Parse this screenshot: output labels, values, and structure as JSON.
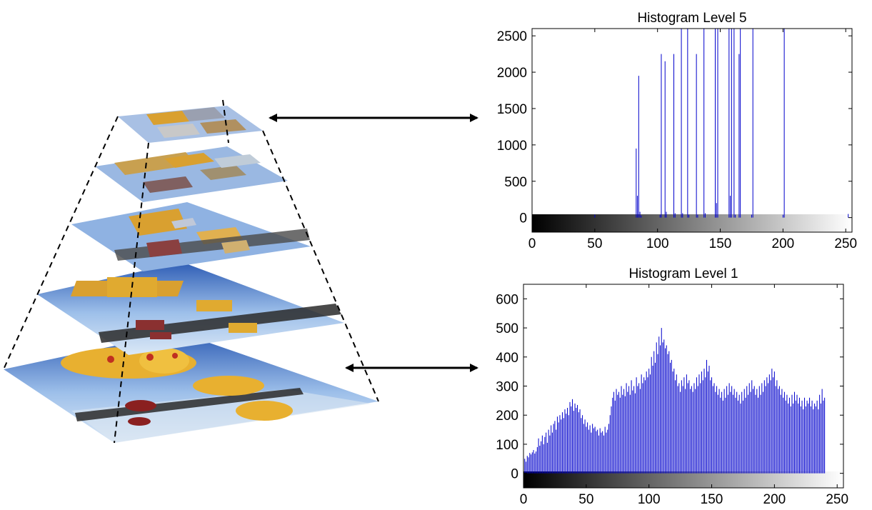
{
  "colors": {
    "histogram_line": "#0000cc",
    "arrow": "#000000",
    "sky": "#4a78c8",
    "balloon": "#e0a020",
    "water": "#2c2c2c"
  },
  "pyramid": {
    "levels": 5,
    "icons": [
      "pyramid-level-5",
      "pyramid-level-4",
      "pyramid-level-3",
      "pyramid-level-2",
      "pyramid-level-1"
    ]
  },
  "chart_data": [
    {
      "type": "bar",
      "title": "Histogram Level 5",
      "xlim": [
        0,
        255
      ],
      "ylim": [
        -200,
        2600
      ],
      "xticks": [
        "0",
        "50",
        "100",
        "150",
        "200",
        "250"
      ],
      "yticks": [
        "0",
        "500",
        "1000",
        "1500",
        "2000",
        "2500"
      ],
      "xtick_values": [
        0,
        50,
        100,
        150,
        200,
        250
      ],
      "ytick_values": [
        0,
        500,
        1000,
        1500,
        2000,
        2500
      ],
      "x": [
        50,
        83,
        84,
        85,
        86,
        87,
        102,
        103,
        106,
        107,
        113,
        114,
        119,
        120,
        124,
        125,
        131,
        132,
        137,
        138,
        146,
        147,
        148,
        157,
        158,
        159,
        161,
        162,
        165,
        166,
        175,
        176,
        200,
        201,
        252
      ],
      "values": [
        40,
        950,
        300,
        1950,
        80,
        30,
        40,
        2250,
        2150,
        80,
        2250,
        60,
        2600,
        60,
        2600,
        40,
        2250,
        40,
        2600,
        60,
        2600,
        200,
        2600,
        2600,
        300,
        2600,
        2600,
        40,
        2250,
        2600,
        40,
        2600,
        40,
        2600,
        50
      ]
    },
    {
      "type": "bar",
      "title": "Histogram Level 1",
      "xlim": [
        0,
        255
      ],
      "ylim": [
        -50,
        650
      ],
      "xticks": [
        "0",
        "50",
        "100",
        "150",
        "200",
        "250"
      ],
      "yticks": [
        "0",
        "100",
        "200",
        "300",
        "400",
        "500",
        "600"
      ],
      "xtick_values": [
        0,
        50,
        100,
        150,
        200,
        250
      ],
      "ytick_values": [
        0,
        100,
        200,
        300,
        400,
        500,
        600
      ],
      "x_start": 0,
      "values": [
        30,
        50,
        40,
        60,
        55,
        70,
        65,
        72,
        80,
        68,
        75,
        90,
        120,
        95,
        110,
        130,
        100,
        125,
        140,
        105,
        150,
        130,
        165,
        140,
        170,
        180,
        150,
        195,
        175,
        200,
        185,
        210,
        190,
        220,
        205,
        225,
        200,
        245,
        230,
        255,
        215,
        240,
        225,
        235,
        210,
        220,
        190,
        200,
        170,
        185,
        160,
        175,
        150,
        165,
        140,
        170,
        155,
        160,
        145,
        150,
        130,
        155,
        140,
        145,
        130,
        160,
        140,
        150,
        170,
        200,
        230,
        260,
        280,
        250,
        290,
        270,
        280,
        260,
        300,
        270,
        290,
        265,
        310,
        280,
        300,
        270,
        320,
        285,
        300,
        275,
        330,
        300,
        310,
        290,
        340,
        310,
        330,
        320,
        350,
        330,
        360,
        340,
        400,
        370,
        420,
        380,
        450,
        410,
        470,
        440,
        500,
        450,
        460,
        430,
        440,
        410,
        420,
        380,
        390,
        350,
        360,
        320,
        340,
        300,
        310,
        280,
        320,
        300,
        330,
        290,
        340,
        310,
        320,
        290,
        300,
        280,
        310,
        290,
        330,
        300,
        340,
        310,
        350,
        320,
        360,
        330,
        390,
        350,
        370,
        320,
        330,
        300,
        310,
        280,
        300,
        270,
        290,
        260,
        280,
        250,
        290,
        260,
        300,
        270,
        310,
        280,
        300,
        270,
        290,
        260,
        280,
        250,
        270,
        240,
        280,
        250,
        290,
        260,
        300,
        270,
        310,
        280,
        320,
        290,
        300,
        270,
        290,
        260,
        300,
        270,
        310,
        280,
        320,
        300,
        330,
        310,
        340,
        320,
        360,
        330,
        350,
        300,
        320,
        290,
        300,
        270,
        290,
        260,
        280,
        250,
        270,
        240,
        260,
        230,
        270,
        240,
        280,
        250,
        270,
        240,
        260,
        230,
        250,
        220,
        260,
        230,
        250,
        240,
        260,
        230,
        250,
        220,
        240,
        230,
        250,
        220,
        270,
        240,
        290,
        250,
        260
      ]
    }
  ]
}
